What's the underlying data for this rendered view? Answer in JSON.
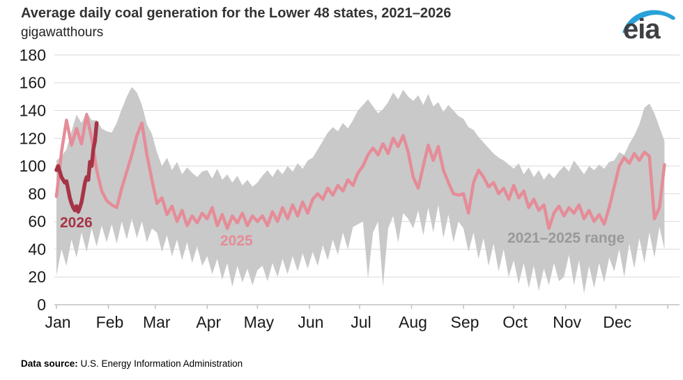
{
  "header": {
    "title": "Average daily coal generation for the Lower 48 states, 2021–2026",
    "subtitle": "gigawatthours",
    "logo_text": "eia"
  },
  "footer": {
    "label": "Data source:",
    "text": " U.S. Energy Information Administration"
  },
  "colors": {
    "range_band": "#c9c9c9",
    "range_label": "#999999",
    "line_2025": "#e58c98",
    "line_2026": "#a63446",
    "gridline": "#d9d9d9",
    "axis": "#c0c0c0",
    "axis_text": "#1a1a1a",
    "logo_blue": "#2aa1d8",
    "logo_gray": "#3f4043"
  },
  "chart_data": {
    "type": "line",
    "title": "Average daily coal generation for the Lower 48 states, 2021–2026",
    "ylabel": "gigawatthours",
    "xlabel": "",
    "ylim": [
      0,
      180
    ],
    "y_ticks": [
      0,
      20,
      40,
      60,
      80,
      100,
      120,
      140,
      160,
      180
    ],
    "grid": "horizontal",
    "legend": "inline-labels",
    "x_months": [
      "Jan",
      "Feb",
      "Mar",
      "Apr",
      "May",
      "Jun",
      "Jul",
      "Aug",
      "Sep",
      "Oct",
      "Nov",
      "Dec"
    ],
    "month_start_days": [
      1,
      32,
      60,
      91,
      121,
      152,
      182,
      213,
      244,
      274,
      305,
      335
    ],
    "days_in_year": 365,
    "sampling_note": "values in gigawatthours estimated from chart; band and 2025 sampled every 3 days, 2026 daily",
    "series": [
      {
        "name": "2021–2025 range",
        "type": "band",
        "color": "#c9c9c9",
        "start_day": 1,
        "step_days": 3,
        "max": [
          104,
          107,
          112,
          125,
          137,
          131,
          139,
          133,
          133,
          127,
          125,
          124,
          131,
          141,
          150,
          157,
          153,
          144,
          130,
          123,
          110,
          100,
          106,
          97,
          103,
          94,
          99,
          95,
          92,
          96,
          97,
          91,
          98,
          90,
          94,
          88,
          93,
          86,
          90,
          85,
          88,
          93,
          97,
          92,
          98,
          94,
          100,
          96,
          102,
          98,
          104,
          106,
          112,
          118,
          124,
          128,
          125,
          131,
          127,
          133,
          140,
          144,
          148,
          143,
          138,
          141,
          146,
          153,
          148,
          155,
          150,
          147,
          151,
          144,
          152,
          143,
          146,
          139,
          144,
          140,
          136,
          134,
          128,
          126,
          121,
          117,
          113,
          109,
          106,
          104,
          101,
          98,
          102,
          94,
          99,
          92,
          97,
          90,
          95,
          91,
          96,
          100,
          96,
          104,
          99,
          94,
          100,
          97,
          101,
          98,
          103,
          104,
          110,
          108,
          116,
          122,
          130,
          142,
          145,
          138,
          128,
          118
        ],
        "min": [
          21,
          40,
          28,
          47,
          34,
          52,
          38,
          55,
          42,
          57,
          45,
          58,
          44,
          60,
          47,
          62,
          48,
          60,
          45,
          55,
          52,
          38,
          50,
          35,
          47,
          32,
          45,
          30,
          42,
          28,
          35,
          22,
          33,
          18,
          30,
          13,
          28,
          16,
          26,
          14,
          25,
          28,
          17,
          30,
          20,
          33,
          22,
          35,
          24,
          37,
          26,
          38,
          28,
          43,
          32,
          47,
          36,
          52,
          40,
          56,
          58,
          60,
          19,
          52,
          60,
          13,
          55,
          64,
          45,
          66,
          62,
          55,
          68,
          50,
          70,
          52,
          72,
          48,
          65,
          45,
          60,
          55,
          38,
          52,
          33,
          48,
          28,
          44,
          24,
          40,
          20,
          32,
          15,
          30,
          12,
          28,
          10,
          26,
          14,
          30,
          17,
          20,
          36,
          14,
          32,
          8,
          28,
          12,
          30,
          16,
          34,
          24,
          40,
          20,
          44,
          26,
          48,
          30,
          52,
          34,
          56,
          40
        ]
      },
      {
        "name": "2025",
        "type": "line",
        "color": "#e58c98",
        "start_day": 1,
        "step_days": 3,
        "values": [
          78,
          110,
          133,
          115,
          127,
          116,
          137,
          120,
          97,
          82,
          75,
          72,
          70,
          84,
          96,
          108,
          122,
          131,
          108,
          90,
          73,
          77,
          65,
          71,
          60,
          68,
          57,
          64,
          59,
          66,
          62,
          70,
          57,
          65,
          55,
          64,
          59,
          66,
          57,
          64,
          60,
          64,
          57,
          67,
          60,
          70,
          62,
          72,
          64,
          74,
          66,
          76,
          80,
          76,
          84,
          79,
          86,
          82,
          90,
          86,
          95,
          100,
          108,
          113,
          108,
          116,
          109,
          120,
          114,
          122,
          110,
          92,
          84,
          100,
          115,
          104,
          114,
          97,
          88,
          80,
          79,
          80,
          66,
          88,
          97,
          92,
          85,
          88,
          80,
          84,
          76,
          86,
          77,
          82,
          70,
          76,
          68,
          72,
          55,
          66,
          71,
          64,
          70,
          66,
          72,
          62,
          68,
          60,
          65,
          58,
          70,
          85,
          100,
          106,
          102,
          109,
          104,
          110,
          107,
          62,
          70,
          101
        ]
      },
      {
        "name": "2026",
        "type": "line",
        "color": "#a63446",
        "start_day": 1,
        "step_days": 1,
        "values": [
          97,
          100,
          96,
          92,
          90,
          88,
          89,
          83,
          77,
          73,
          70,
          68,
          71,
          67,
          70,
          74,
          81,
          88,
          92,
          90,
          103,
          100,
          112,
          118,
          131
        ]
      }
    ]
  }
}
